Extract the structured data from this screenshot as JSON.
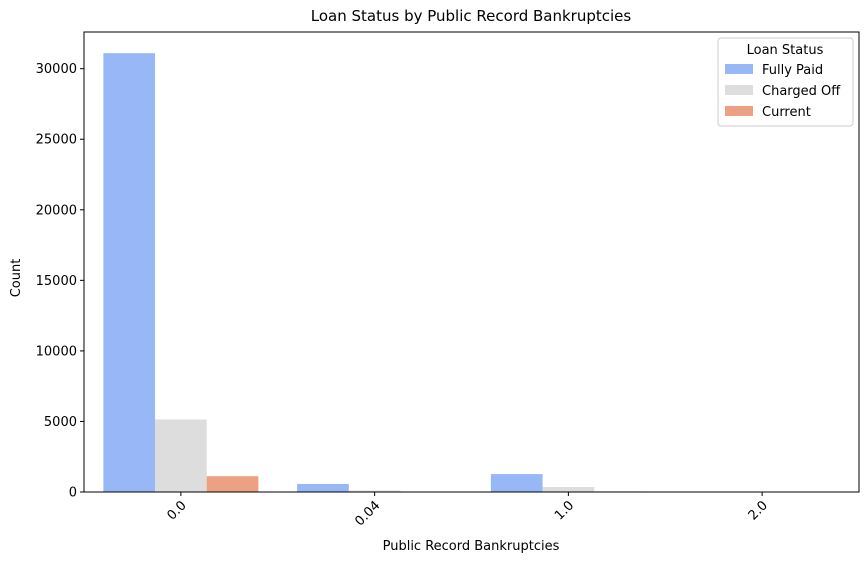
{
  "chart_data": {
    "type": "bar",
    "title": "Loan Status by Public Record Bankruptcies",
    "xlabel": "Public Record Bankruptcies",
    "ylabel": "Count",
    "categories": [
      "0.0",
      "0.04",
      "1.0",
      "2.0"
    ],
    "series": [
      {
        "name": "Fully Paid",
        "color": "#97b7f7",
        "values": [
          31100,
          570,
          1270,
          2
        ]
      },
      {
        "name": "Charged Off",
        "color": "#dddddd",
        "values": [
          5140,
          100,
          350,
          2
        ]
      },
      {
        "name": "Current",
        "color": "#eda183",
        "values": [
          1120,
          10,
          40,
          0
        ]
      }
    ],
    "ylim": [
      0,
      32600
    ],
    "yticks": [
      0,
      5000,
      10000,
      15000,
      20000,
      25000,
      30000
    ],
    "grid": false,
    "x_tick_rotation_deg": 45,
    "legend": {
      "title": "Loan Status",
      "placement": "top-right"
    }
  }
}
